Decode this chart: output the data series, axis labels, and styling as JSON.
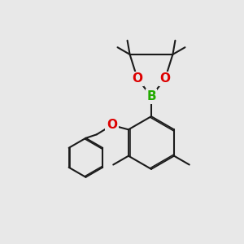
{
  "bg_color": "#e8e8e8",
  "bond_color": "#1a1a1a",
  "oxygen_color": "#dd0000",
  "boron_color": "#22aa00",
  "lw": 1.5,
  "dbg": 0.055,
  "figsize": [
    3.0,
    3.0
  ],
  "dpi": 100,
  "xlim": [
    0,
    10
  ],
  "ylim": [
    0,
    10
  ]
}
